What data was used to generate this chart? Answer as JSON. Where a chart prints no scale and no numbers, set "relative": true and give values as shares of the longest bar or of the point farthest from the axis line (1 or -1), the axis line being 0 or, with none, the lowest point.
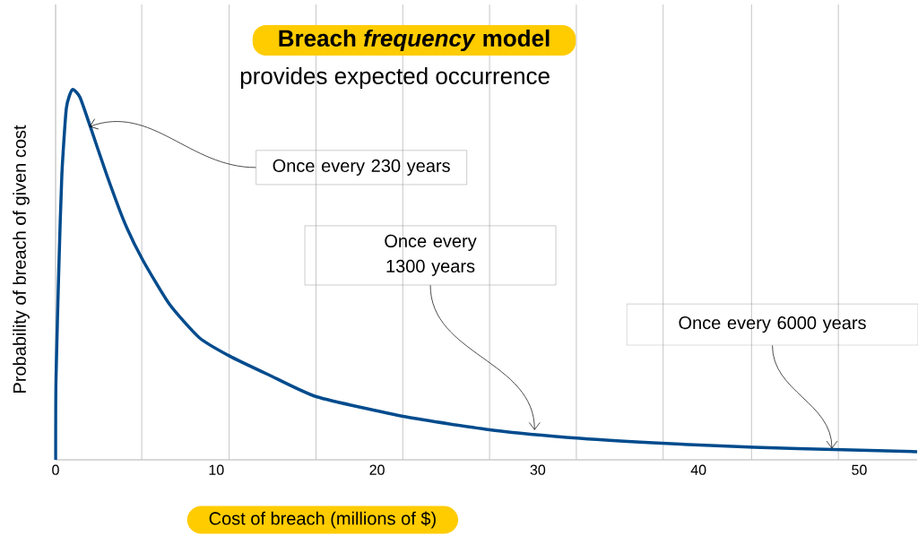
{
  "chart_data": {
    "type": "line",
    "title": "**Breach *frequency* model**",
    "subtitle": "provides expected occurrence",
    "xlabel": "Cost of breach (millions of $)",
    "ylabel": "Probability of breach of given cost",
    "relative": true,
    "xlim": [
      0,
      53.6
    ],
    "xticks": [
      0,
      10,
      20,
      30,
      40,
      50,
      {
        "value": 5.36,
        "label": null
      },
      {
        "value": 10.8,
        "label": null
      },
      {
        "value": 16.2,
        "label": null
      },
      {
        "value": 21.6,
        "label": null
      },
      {
        "value": 27.0,
        "label": null
      },
      {
        "value": 32.4,
        "label": null
      },
      {
        "value": 37.8,
        "label": null
      },
      {
        "value": 43.3,
        "label": null
      },
      {
        "value": 48.7,
        "label": null
      }
    ],
    "grid": "x",
    "marker": "none",
    "line_style": "solid",
    "x": [
      0,
      0.02,
      0.21,
      0.39,
      0.67,
      1.04,
      1.51,
      2.16,
      3.18,
      4.3,
      5.42,
      7.09,
      8.94,
      10.84,
      13.24,
      16.26,
      21.79,
      27.21,
      32.63,
      38.04,
      43.46,
      48.94,
      53.6
    ],
    "series": [
      {
        "color": "#004b8d",
        "values": [
          0,
          0.21,
          0.53,
          0.77,
          0.95,
          1.0,
          0.98,
          0.9,
          0.77,
          0.64,
          0.54,
          0.42,
          0.33,
          0.28,
          0.23,
          0.17,
          0.116,
          0.08,
          0.058,
          0.044,
          0.034,
          0.027,
          0.022
        ]
      }
    ],
    "annotations": [
      {
        "text": "Once every 230 years",
        "x": 2.1,
        "y": 0.9
      },
      {
        "text": "Once every 1300 years",
        "x": 29.8,
        "y": 0.08
      },
      {
        "text": "Once every 6000 years",
        "x": 48.3,
        "y": 0.03
      }
    ]
  }
}
